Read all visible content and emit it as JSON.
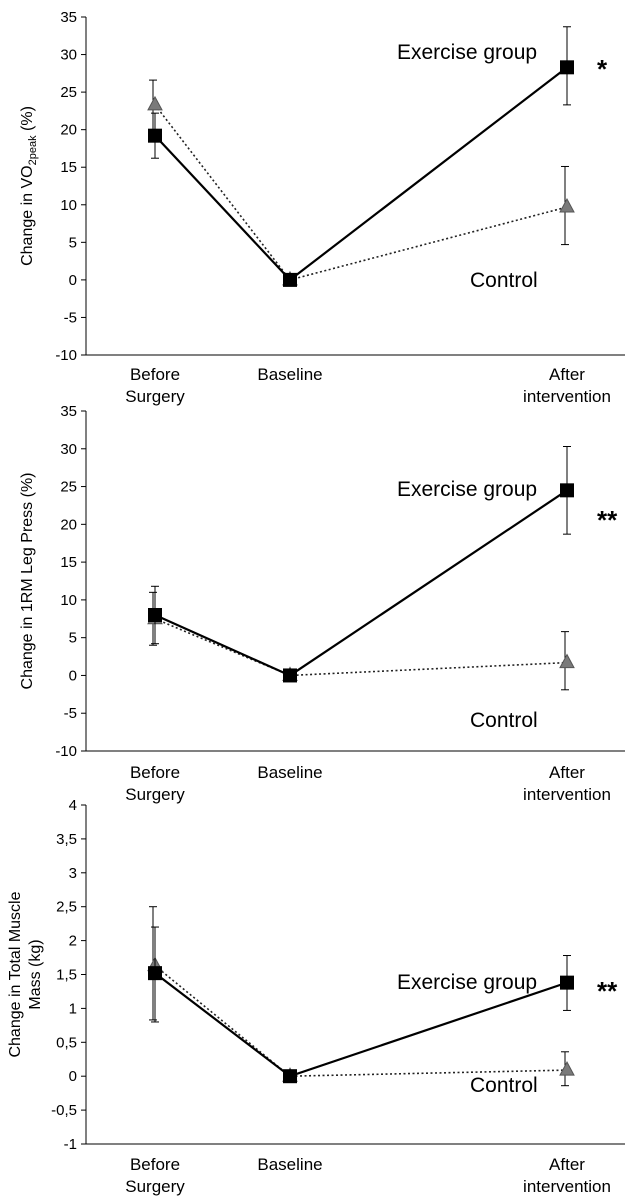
{
  "chart_data": [
    {
      "type": "line",
      "ylabel": "Change in VO2peak (%)",
      "ylabel_parts": {
        "main": "Change in VO",
        "subscript": "2peak",
        "suffix": " (%)"
      },
      "ylim": [
        -10,
        35
      ],
      "yticks": [
        "35",
        "30",
        "25",
        "20",
        "15",
        "10",
        "5",
        "0",
        "-5",
        "-10"
      ],
      "ytick_values": [
        35,
        30,
        25,
        20,
        15,
        10,
        5,
        0,
        -5,
        -10
      ],
      "categories": [
        [
          "Before",
          "Surgery"
        ],
        [
          "Baseline"
        ],
        [
          "After",
          "intervention"
        ]
      ],
      "series": [
        {
          "name": "Exercise group",
          "marker": "square",
          "line": "solid",
          "values": [
            19.2,
            0,
            28.3
          ],
          "err_low": [
            3.0,
            0,
            5.0
          ],
          "err_high": [
            3.0,
            0,
            5.4
          ]
        },
        {
          "name": "Control",
          "marker": "triangle",
          "line": "dotted",
          "values": [
            23.3,
            0,
            9.7
          ],
          "err_low": [
            3.3,
            0,
            5.0
          ],
          "err_high": [
            3.3,
            0,
            5.4
          ]
        }
      ],
      "significance": "*",
      "annotations": {
        "exercise": "Exercise group",
        "control": "Control"
      }
    },
    {
      "type": "line",
      "ylabel": "Change in 1RM Leg Press (%)",
      "ylim": [
        -10,
        35
      ],
      "yticks": [
        "35",
        "30",
        "25",
        "20",
        "15",
        "10",
        "5",
        "0",
        "-5",
        "-10"
      ],
      "ytick_values": [
        35,
        30,
        25,
        20,
        15,
        10,
        5,
        0,
        -5,
        -10
      ],
      "categories": [
        [
          "Before",
          "Surgery"
        ],
        [
          "Baseline"
        ],
        [
          "After",
          "intervention"
        ]
      ],
      "series": [
        {
          "name": "Exercise group",
          "marker": "square",
          "line": "solid",
          "values": [
            8.0,
            0,
            24.5
          ],
          "err_low": [
            3.8,
            0,
            5.8
          ],
          "err_high": [
            3.8,
            0,
            5.8
          ]
        },
        {
          "name": "Control",
          "marker": "triangle",
          "line": "dotted",
          "values": [
            7.5,
            0,
            1.7
          ],
          "err_low": [
            3.5,
            0,
            3.6
          ],
          "err_high": [
            3.5,
            0,
            4.1
          ]
        }
      ],
      "significance": "**",
      "annotations": {
        "exercise": "Exercise group",
        "control": "Control"
      }
    },
    {
      "type": "line",
      "ylabel": "Change in Total Muscle Mass (kg)",
      "ylabel_lines": [
        "Change in Total Muscle",
        "Mass (kg)"
      ],
      "ylim": [
        -1,
        4
      ],
      "yticks": [
        "4",
        "3,5",
        "3",
        "2,5",
        "2",
        "1,5",
        "1",
        "0,5",
        "0",
        "-0,5",
        "-1"
      ],
      "ytick_values": [
        4,
        3.5,
        3,
        2.5,
        2,
        1.5,
        1,
        0.5,
        0,
        -0.5,
        -1
      ],
      "categories": [
        [
          "Before",
          "Surgery"
        ],
        [
          "Baseline"
        ],
        [
          "After",
          "intervention"
        ]
      ],
      "series": [
        {
          "name": "Exercise group",
          "marker": "square",
          "line": "solid",
          "values": [
            1.52,
            0,
            1.38
          ],
          "err_low": [
            0.72,
            0,
            0.41
          ],
          "err_high": [
            0.68,
            0,
            0.4
          ]
        },
        {
          "name": "Control",
          "marker": "triangle",
          "line": "dotted",
          "values": [
            1.63,
            0,
            0.09
          ],
          "err_low": [
            0.8,
            0,
            0.23
          ],
          "err_high": [
            0.87,
            0,
            0.27
          ]
        }
      ],
      "significance": "**",
      "annotations": {
        "exercise": "Exercise group",
        "control": "Control"
      }
    }
  ],
  "colors": {
    "exercise": "#000000",
    "control": "#7a7a7a",
    "control_outline": "#555555",
    "axis": "#000000"
  }
}
